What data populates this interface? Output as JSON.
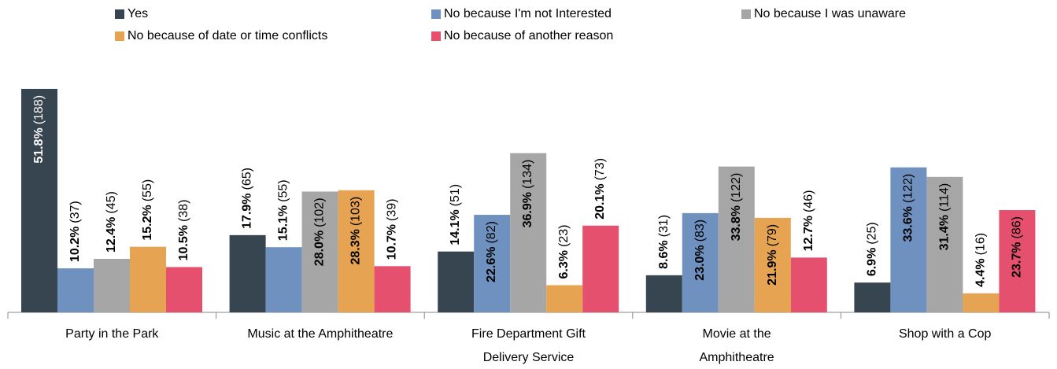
{
  "chart_data": {
    "type": "bar",
    "categories": [
      [
        "Party in the Park"
      ],
      [
        "Music at the Amphitheatre"
      ],
      [
        "Fire Department Gift",
        "Delivery Service"
      ],
      [
        "Movie at the",
        "Amphitheatre"
      ],
      [
        "Shop with a Cop"
      ]
    ],
    "ylim": [
      0,
      55
    ],
    "series": [
      {
        "name": "Yes",
        "color": "#374550",
        "values": [
          51.8,
          17.9,
          14.1,
          8.6,
          6.9
        ],
        "value_labels": [
          "51.8%",
          "17.9%",
          "14.1%",
          "8.6%",
          "6.9%"
        ],
        "count_labels": [
          "(188)",
          "(65)",
          "(51)",
          "(31)",
          "(25)"
        ]
      },
      {
        "name": "No because I'm not Interested",
        "color": "#6f91c0",
        "values": [
          10.2,
          15.1,
          22.6,
          23.0,
          33.6
        ],
        "value_labels": [
          "10.2%",
          "15.1%",
          "22.6%",
          "23.0%",
          "33.6%"
        ],
        "count_labels": [
          "(37)",
          "(55)",
          "(82)",
          "(83)",
          "(122)"
        ]
      },
      {
        "name": "No because I was unaware",
        "color": "#a6a6a6",
        "values": [
          12.4,
          28.0,
          36.9,
          33.8,
          31.4
        ],
        "value_labels": [
          "12.4%",
          "28.0%",
          "36.9%",
          "33.8%",
          "31.4%"
        ],
        "count_labels": [
          "(45)",
          "(102)",
          "(134)",
          "(122)",
          "(114)"
        ]
      },
      {
        "name": "No because of date or time conflicts",
        "color": "#e6a452",
        "values": [
          15.2,
          28.3,
          6.3,
          21.9,
          4.4
        ],
        "value_labels": [
          "15.2%",
          "28.3%",
          "6.3%",
          "21.9%",
          "4.4%"
        ],
        "count_labels": [
          "(55)",
          "(103)",
          "(23)",
          "(79)",
          "(16)"
        ]
      },
      {
        "name": "No because of another reason",
        "color": "#e4506e",
        "values": [
          10.5,
          10.7,
          20.1,
          12.7,
          23.7
        ],
        "value_labels": [
          "10.5%",
          "10.7%",
          "20.1%",
          "12.7%",
          "23.7%"
        ],
        "count_labels": [
          "(38)",
          "(39)",
          "(73)",
          "(46)",
          "(86)"
        ]
      }
    ]
  }
}
